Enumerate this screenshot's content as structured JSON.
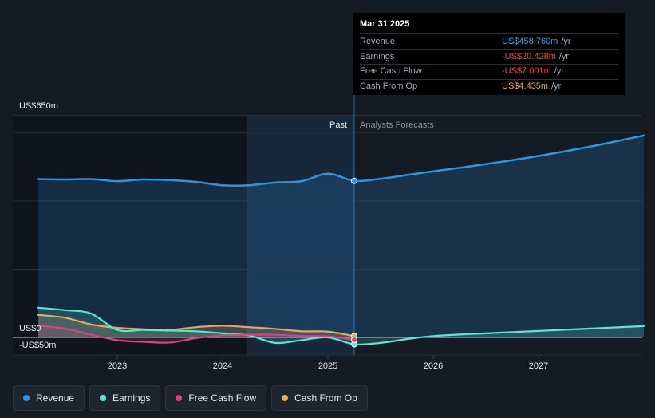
{
  "tooltip": {
    "date": "Mar 31 2025",
    "rows": [
      {
        "label": "Revenue",
        "value": "US$458.760m",
        "unit": "/yr",
        "color": "#3b9ee6"
      },
      {
        "label": "Earnings",
        "value": "-US$20.428m",
        "unit": "/yr",
        "color": "#f04b4b"
      },
      {
        "label": "Free Cash Flow",
        "value": "-US$7.001m",
        "unit": "/yr",
        "color": "#f04b4b"
      },
      {
        "label": "Cash From Op",
        "value": "US$4.435m",
        "unit": "/yr",
        "color": "#e8a85c"
      }
    ]
  },
  "legend": [
    {
      "label": "Revenue",
      "color": "#2e93e0"
    },
    {
      "label": "Earnings",
      "color": "#5ee3d6"
    },
    {
      "label": "Free Cash Flow",
      "color": "#d9447f"
    },
    {
      "label": "Cash From Op",
      "color": "#e8a85c"
    }
  ],
  "chart_data": {
    "type": "line",
    "y_top_label": "US$650m",
    "y_zero_label": "US$0",
    "y_bottom_label": "-US$50m",
    "ylim": [
      -50,
      650
    ],
    "x_ticks": [
      "2023",
      "2024",
      "2025",
      "2026",
      "2027"
    ],
    "past_label": "Past",
    "forecast_label": "Analysts Forecasts",
    "divider_date": 2025.25,
    "series": [
      {
        "name": "Revenue",
        "color": "#2e93e0",
        "x": [
          2022.25,
          2022.5,
          2022.75,
          2023.0,
          2023.25,
          2023.5,
          2023.75,
          2024.0,
          2024.25,
          2024.5,
          2024.75,
          2025.0,
          2025.25,
          2025.5,
          2025.75,
          2026.0,
          2026.5,
          2027.0,
          2027.5,
          2028.0
        ],
        "y": [
          464,
          463,
          464,
          458,
          463,
          461,
          456,
          446,
          446,
          454,
          458,
          480,
          459,
          465,
          476,
          487,
          508,
          532,
          560,
          592
        ]
      },
      {
        "name": "Earnings",
        "color": "#5ee3d6",
        "x": [
          2022.25,
          2022.5,
          2022.75,
          2023.0,
          2023.25,
          2023.5,
          2023.75,
          2024.0,
          2024.25,
          2024.5,
          2024.75,
          2025.0,
          2025.25,
          2025.5,
          2025.75,
          2026.0,
          2026.5,
          2027.0,
          2027.5,
          2028.0
        ],
        "y": [
          87,
          80,
          70,
          22,
          22,
          20,
          18,
          12,
          6,
          -16,
          -8,
          0,
          -20,
          -16,
          -5,
          4,
          12,
          19,
          26,
          33
        ]
      },
      {
        "name": "Free Cash Flow",
        "color": "#d9447f",
        "x": [
          2022.25,
          2022.5,
          2022.75,
          2023.0,
          2023.25,
          2023.5,
          2023.75,
          2024.0,
          2024.25,
          2024.5,
          2024.75,
          2025.0,
          2025.25
        ],
        "y": [
          34,
          26,
          8,
          -8,
          -13,
          -15,
          -2,
          6,
          8,
          8,
          4,
          3,
          -7
        ]
      },
      {
        "name": "Cash From Op",
        "color": "#e8a85c",
        "x": [
          2022.25,
          2022.5,
          2022.75,
          2023.0,
          2023.25,
          2023.5,
          2023.75,
          2024.0,
          2024.25,
          2024.5,
          2024.75,
          2025.0,
          2025.25
        ],
        "y": [
          66,
          58,
          38,
          28,
          24,
          22,
          30,
          34,
          30,
          25,
          18,
          17,
          4
        ]
      }
    ]
  }
}
